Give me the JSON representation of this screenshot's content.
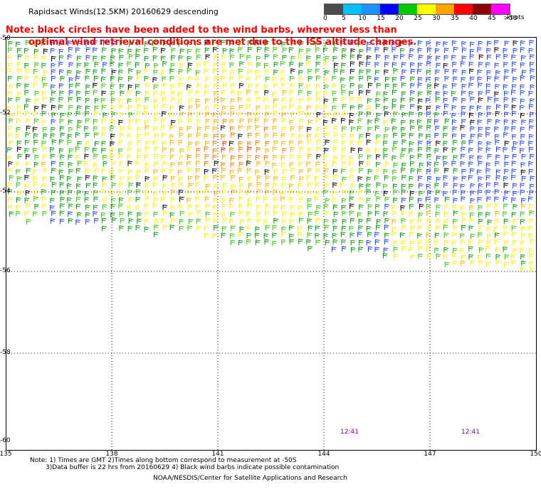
{
  "title": "Rapidsact Winds(12.5KM) 20160629 descending",
  "note_line1": "Note: black circles have been added to the wind barbs, wherever less than",
  "note_line2": "optimal wind retrieval conditions are met due to the ISS altitude changes.",
  "legend": {
    "ticks": [
      "0",
      "5",
      "10",
      "15",
      "20",
      "25",
      "30",
      "35",
      "40",
      "45",
      ">50"
    ],
    "units": "knots",
    "colors": [
      "#4d4d4d",
      "#00bfff",
      "#1e90ff",
      "#0000ff",
      "#00cc00",
      "#ffff00",
      "#ffa500",
      "#ff0000",
      "#8b0000",
      "#ff00ff",
      "#6a0dad"
    ]
  },
  "axes": {
    "lat_labels": [
      "-50",
      "-52",
      "-54",
      "-56",
      "-58",
      "-60"
    ],
    "lon_labels": [
      "135",
      "138",
      "141",
      "144",
      "147",
      "150"
    ]
  },
  "times": [
    "12:41",
    "12:41"
  ],
  "footer": {
    "line1": "Note: 1) Times are GMT 2)Times along bottom correspond to measurement at -50S",
    "line2": "3)Data buffer is 22 hrs from 20160629 4) Black wind barbs indicate possible contamination",
    "line3": "NOAA/NESDIS/Center for Satellite Applications and Research"
  }
}
